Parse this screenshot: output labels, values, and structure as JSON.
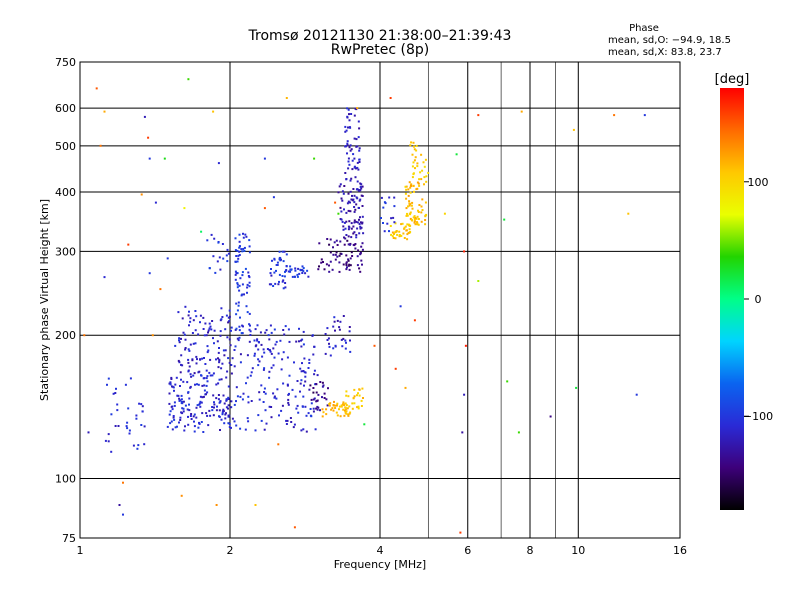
{
  "chart_data": {
    "type": "scatter",
    "title": "Tromsø 20121130 21:38:00–21:39:43",
    "subtitle": "RwPretec (8p)",
    "xlabel": "Frequency [MHz]",
    "ylabel": "Stationary phase Virtual Height [km]",
    "x_scale": "log",
    "y_scale": "log",
    "xlim": [
      1,
      16
    ],
    "ylim": [
      75,
      750
    ],
    "x_ticks": [
      1,
      2,
      4,
      6,
      8,
      10,
      16
    ],
    "x_tick_labels": [
      "1",
      "2",
      "4",
      "6",
      "8",
      "10",
      "16"
    ],
    "x_gridlines": [
      2,
      4,
      6,
      8,
      10
    ],
    "x_minor_gridlines": [
      5,
      7,
      9
    ],
    "y_ticks": [
      75,
      100,
      200,
      300,
      400,
      500,
      600,
      750
    ],
    "y_tick_labels": [
      "75",
      "100",
      "200",
      "300",
      "400",
      "500",
      "600",
      "750"
    ],
    "y_gridlines": [
      100,
      200,
      300,
      400,
      500,
      600
    ],
    "grid": true,
    "stats": {
      "heading": "Phase",
      "line_o": "mean, sd,O: −94.9, 18.5",
      "line_x": "mean, sd,X:  83.8, 23.7"
    },
    "colorbar": {
      "label": "[deg]",
      "range": [
        -180,
        180
      ],
      "ticks": [
        100,
        0,
        -100
      ],
      "tick_labels": [
        "100",
        "0",
        "−100"
      ],
      "colors": [
        "#000000",
        "#3d007a",
        "#2a2ad6",
        "#0a64f0",
        "#00d4ff",
        "#00ff88",
        "#22d400",
        "#eaff00",
        "#ffc800",
        "#ff6a00",
        "#ff0000"
      ]
    },
    "series": [
      {
        "clusters": [
          {
            "f": [
              1.5,
              2.0
            ],
            "h": [
              125,
              165
            ],
            "n": 170,
            "phase": -110
          },
          {
            "f": [
              1.55,
              2.0
            ],
            "h": [
              165,
              230
            ],
            "n": 110,
            "phase": -115
          },
          {
            "f": [
              2.0,
              3.0
            ],
            "h": [
              125,
              210
            ],
            "n": 200,
            "phase": -110
          },
          {
            "f": [
              2.05,
              2.2
            ],
            "h": [
              200,
              330
            ],
            "n": 70,
            "phase": -100
          },
          {
            "f": [
              1.8,
              2.0
            ],
            "h": [
              270,
              330
            ],
            "n": 18,
            "phase": -105
          },
          {
            "f": [
              2.4,
              2.6
            ],
            "h": [
              250,
              300
            ],
            "n": 40,
            "phase": -105
          },
          {
            "f": [
              2.6,
              2.9
            ],
            "h": [
              265,
              280
            ],
            "n": 25,
            "phase": -100
          },
          {
            "f": [
              1.1,
              1.35
            ],
            "h": [
              110,
              165
            ],
            "n": 35,
            "phase": -110
          },
          {
            "f": [
              2.9,
              3.15
            ],
            "h": [
              138,
              160
            ],
            "n": 25,
            "phase": -140
          },
          {
            "f": [
              3.1,
              3.5
            ],
            "h": [
              180,
              220
            ],
            "n": 30,
            "phase": -115
          },
          {
            "f": [
              3.0,
              3.7
            ],
            "h": [
              270,
              320
            ],
            "n": 70,
            "phase": -140
          },
          {
            "f": [
              3.3,
              3.7
            ],
            "h": [
              320,
              420
            ],
            "n": 90,
            "phase": -125
          },
          {
            "f": [
              3.4,
              3.65
            ],
            "h": [
              420,
              600
            ],
            "n": 60,
            "phase": -118
          },
          {
            "f": [
              3.05,
              3.5
            ],
            "h": [
              135,
              145
            ],
            "n": 45,
            "phase": 110
          },
          {
            "f": [
              3.4,
              3.7
            ],
            "h": [
              140,
              155
            ],
            "n": 25,
            "phase": 105
          },
          {
            "f": [
              4.2,
              4.6
            ],
            "h": [
              318,
              345
            ],
            "n": 35,
            "phase": 108
          },
          {
            "f": [
              4.5,
              4.95
            ],
            "h": [
              340,
              420
            ],
            "n": 70,
            "phase": 112
          },
          {
            "f": [
              4.6,
              5.0
            ],
            "h": [
              420,
              510
            ],
            "n": 30,
            "phase": 105
          },
          {
            "f": [
              4.0,
              4.3
            ],
            "h": [
              330,
              390
            ],
            "n": 15,
            "phase": -105
          }
        ],
        "points": [
          {
            "f": 1.08,
            "h": 660,
            "phase": 150
          },
          {
            "f": 1.12,
            "h": 590,
            "phase": 120
          },
          {
            "f": 1.1,
            "h": 500,
            "phase": 140
          },
          {
            "f": 1.35,
            "h": 575,
            "phase": -120
          },
          {
            "f": 1.48,
            "h": 470,
            "phase": 30
          },
          {
            "f": 1.65,
            "h": 690,
            "phase": 40
          },
          {
            "f": 1.85,
            "h": 590,
            "phase": 110
          },
          {
            "f": 2.6,
            "h": 630,
            "phase": 115
          },
          {
            "f": 2.95,
            "h": 470,
            "phase": 40
          },
          {
            "f": 3.6,
            "h": 600,
            "phase": 120
          },
          {
            "f": 4.2,
            "h": 630,
            "phase": 160
          },
          {
            "f": 6.3,
            "h": 580,
            "phase": 160
          },
          {
            "f": 7.7,
            "h": 590,
            "phase": 120
          },
          {
            "f": 9.8,
            "h": 540,
            "phase": 110
          },
          {
            "f": 11.8,
            "h": 580,
            "phase": 140
          },
          {
            "f": 13.6,
            "h": 580,
            "phase": -100
          },
          {
            "f": 12.6,
            "h": 360,
            "phase": 110
          },
          {
            "f": 7.1,
            "h": 350,
            "phase": 20
          },
          {
            "f": 5.7,
            "h": 480,
            "phase": 20
          },
          {
            "f": 5.4,
            "h": 360,
            "phase": 100
          },
          {
            "f": 5.9,
            "h": 300,
            "phase": 170
          },
          {
            "f": 6.3,
            "h": 260,
            "phase": 60
          },
          {
            "f": 4.7,
            "h": 215,
            "phase": 160
          },
          {
            "f": 4.4,
            "h": 230,
            "phase": -100
          },
          {
            "f": 3.9,
            "h": 190,
            "phase": 150
          },
          {
            "f": 4.3,
            "h": 170,
            "phase": 160
          },
          {
            "f": 4.5,
            "h": 155,
            "phase": 120
          },
          {
            "f": 5.95,
            "h": 190,
            "phase": 170
          },
          {
            "f": 7.2,
            "h": 160,
            "phase": 40
          },
          {
            "f": 8.8,
            "h": 135,
            "phase": -140
          },
          {
            "f": 9.9,
            "h": 155,
            "phase": 20
          },
          {
            "f": 13.1,
            "h": 150,
            "phase": -100
          },
          {
            "f": 7.6,
            "h": 125,
            "phase": 40
          },
          {
            "f": 5.9,
            "h": 150,
            "phase": -120
          },
          {
            "f": 5.85,
            "h": 125,
            "phase": -130
          },
          {
            "f": 3.72,
            "h": 130,
            "phase": 20
          },
          {
            "f": 2.5,
            "h": 118,
            "phase": 140
          },
          {
            "f": 1.22,
            "h": 98,
            "phase": 140
          },
          {
            "f": 1.2,
            "h": 88,
            "phase": -130
          },
          {
            "f": 1.22,
            "h": 84,
            "phase": -100
          },
          {
            "f": 1.6,
            "h": 92,
            "phase": 130
          },
          {
            "f": 1.88,
            "h": 88,
            "phase": 130
          },
          {
            "f": 2.25,
            "h": 88,
            "phase": 110
          },
          {
            "f": 2.7,
            "h": 79,
            "phase": 150
          },
          {
            "f": 5.8,
            "h": 77,
            "phase": 160
          },
          {
            "f": 1.04,
            "h": 125,
            "phase": -120
          },
          {
            "f": 1.02,
            "h": 200,
            "phase": 140
          },
          {
            "f": 1.12,
            "h": 265,
            "phase": -110
          },
          {
            "f": 1.25,
            "h": 310,
            "phase": 160
          },
          {
            "f": 1.38,
            "h": 270,
            "phase": -100
          },
          {
            "f": 1.4,
            "h": 200,
            "phase": 130
          },
          {
            "f": 1.33,
            "h": 395,
            "phase": 130
          },
          {
            "f": 1.42,
            "h": 380,
            "phase": -110
          },
          {
            "f": 1.62,
            "h": 370,
            "phase": 80
          },
          {
            "f": 1.75,
            "h": 330,
            "phase": 10
          },
          {
            "f": 1.45,
            "h": 250,
            "phase": 140
          },
          {
            "f": 1.5,
            "h": 290,
            "phase": -100
          },
          {
            "f": 2.45,
            "h": 390,
            "phase": -100
          },
          {
            "f": 2.35,
            "h": 370,
            "phase": 150
          },
          {
            "f": 1.9,
            "h": 460,
            "phase": -110
          },
          {
            "f": 2.35,
            "h": 470,
            "phase": -100
          },
          {
            "f": 3.25,
            "h": 380,
            "phase": 150
          },
          {
            "f": 3.3,
            "h": 360,
            "phase": 40
          },
          {
            "f": 1.37,
            "h": 520,
            "phase": 160
          },
          {
            "f": 1.38,
            "h": 470,
            "phase": -100
          }
        ]
      }
    ]
  }
}
